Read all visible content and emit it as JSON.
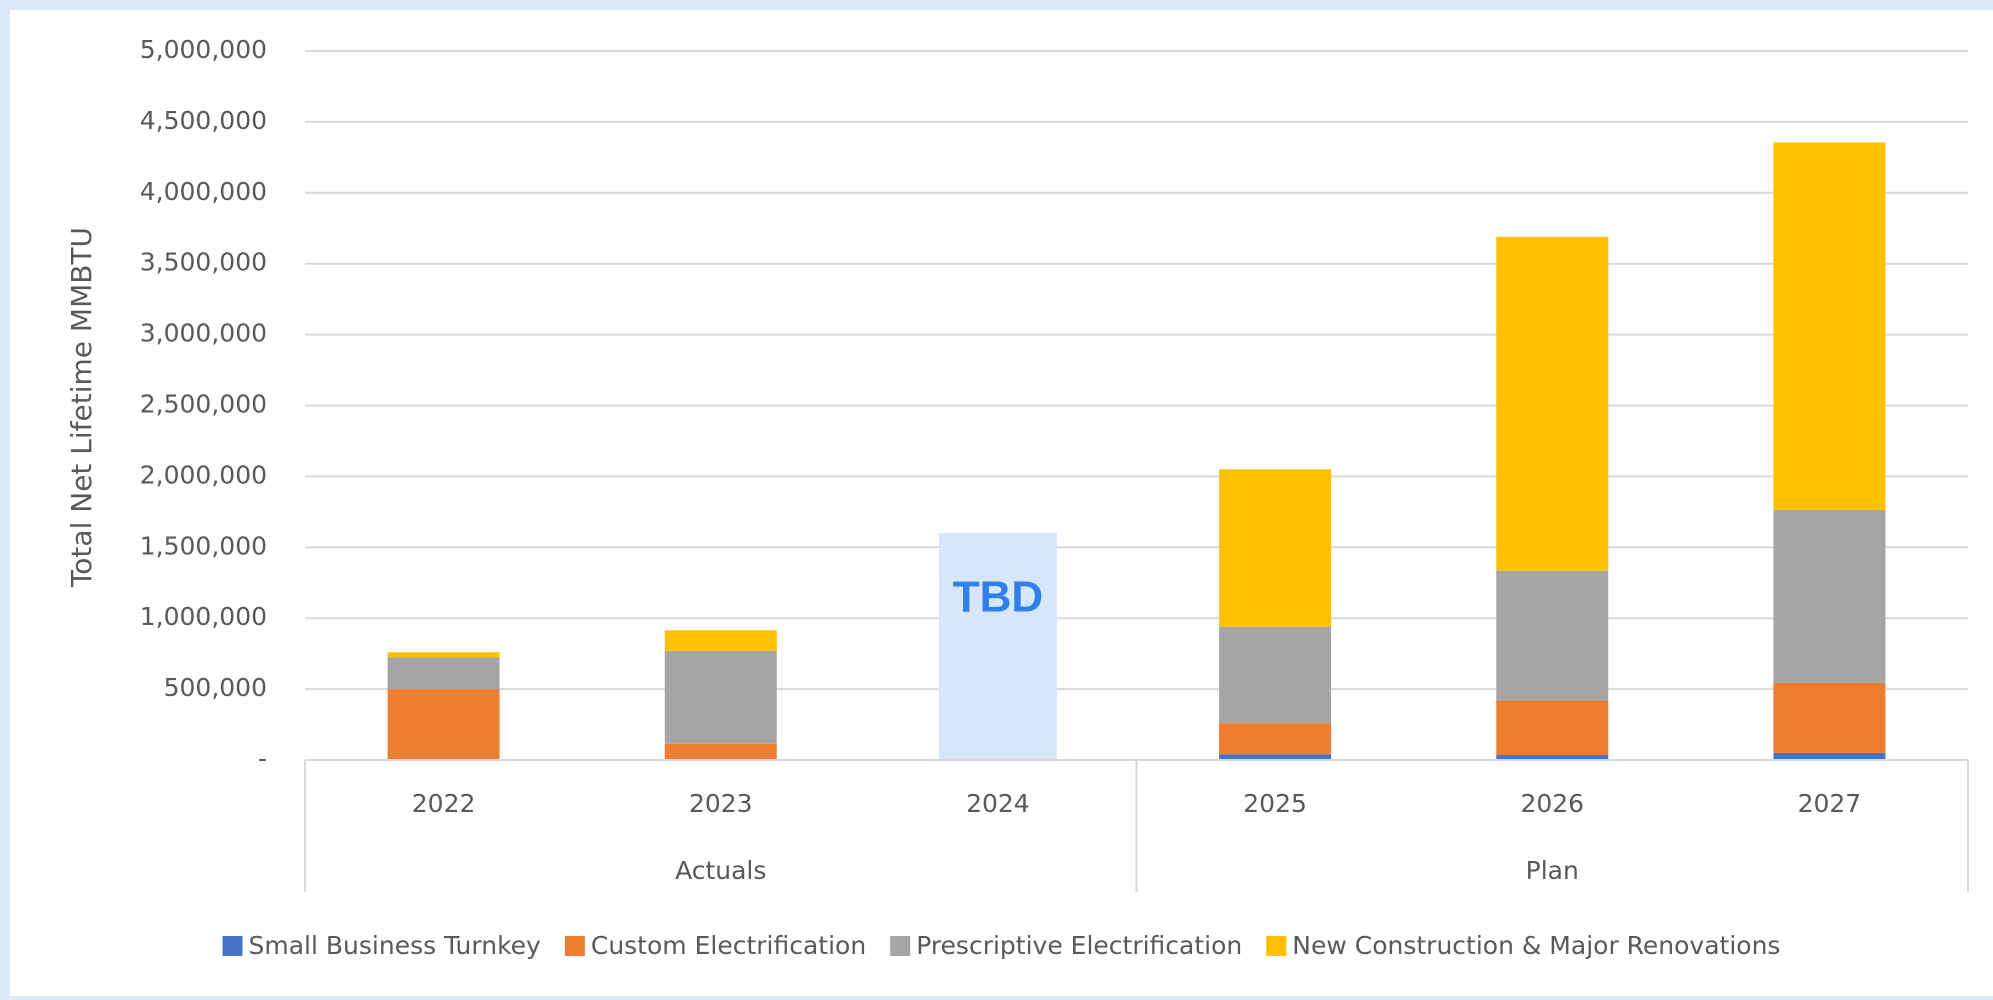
{
  "chart_data": {
    "type": "stacked_bar",
    "y_axis_label": "Total Net Lifetime MMBTU",
    "categories": [
      "2022",
      "2023",
      "2024",
      "2025",
      "2026",
      "2027"
    ],
    "groups": [
      {
        "label": "Actuals",
        "count": 3
      },
      {
        "label": "Plan",
        "count": 3
      }
    ],
    "series": [
      {
        "name": "Small Business Turnkey",
        "color": "#4472c4",
        "values": [
          0,
          0,
          null,
          40000,
          35000,
          50000
        ]
      },
      {
        "name": "Custom Electrification",
        "color": "#ed7d31",
        "values": [
          500000,
          115000,
          null,
          220000,
          385000,
          495000
        ]
      },
      {
        "name": "Prescriptive Electrification",
        "color": "#a5a5a5",
        "values": [
          225000,
          655000,
          null,
          680000,
          915000,
          1220000
        ]
      },
      {
        "name": "New Construction & Major Renovations",
        "color": "#ffc000",
        "values": [
          35000,
          145000,
          null,
          1110000,
          2355000,
          2590000
        ]
      }
    ],
    "annotation": {
      "text": "TBD",
      "category": "2024",
      "value": 1600000,
      "color": "#d6e6fb",
      "text_color": "#2f80e8"
    },
    "ylim": [
      0,
      5000000
    ],
    "yticks": [
      {
        "value": 0,
        "label": "-"
      },
      {
        "value": 500000,
        "label": "500,000"
      },
      {
        "value": 1000000,
        "label": "1,000,000"
      },
      {
        "value": 1500000,
        "label": "1,500,000"
      },
      {
        "value": 2000000,
        "label": "2,000,000"
      },
      {
        "value": 2500000,
        "label": "2,500,000"
      },
      {
        "value": 3000000,
        "label": "3,000,000"
      },
      {
        "value": 3500000,
        "label": "3,500,000"
      },
      {
        "value": 4000000,
        "label": "4,000,000"
      },
      {
        "value": 4500000,
        "label": "4,500,000"
      },
      {
        "value": 5000000,
        "label": "5,000,000"
      }
    ],
    "grid": true,
    "legend": "bottom"
  }
}
